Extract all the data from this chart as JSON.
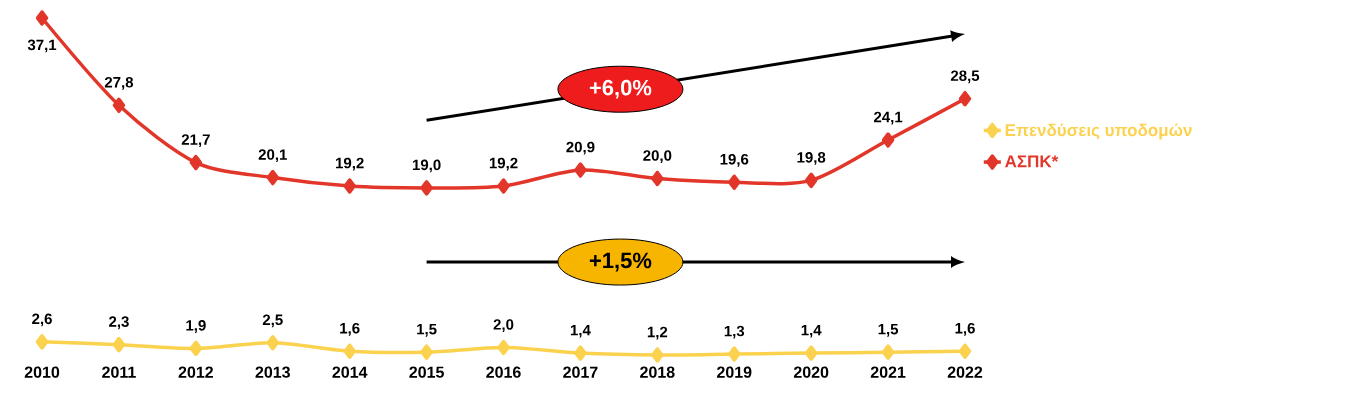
{
  "chart_data": {
    "type": "line",
    "categories": [
      "2010",
      "2011",
      "2012",
      "2013",
      "2014",
      "2015",
      "2016",
      "2017",
      "2018",
      "2019",
      "2020",
      "2021",
      "2022"
    ],
    "series": [
      {
        "name": "Επενδύσεις υποδομών",
        "color": "#fbd24e",
        "values": [
          2.6,
          2.3,
          1.9,
          2.5,
          1.6,
          1.5,
          2.0,
          1.4,
          1.2,
          1.3,
          1.4,
          1.5,
          1.6
        ],
        "value_labels": [
          "2,6",
          "2,3",
          "1,9",
          "2,5",
          "1,6",
          "1,5",
          "2,0",
          "1,4",
          "1,2",
          "1,3",
          "1,4",
          "1,5",
          "1,6"
        ]
      },
      {
        "name": "ΑΣΠΚ*",
        "color": "#e2362a",
        "values": [
          37.1,
          27.8,
          21.7,
          20.1,
          19.2,
          19.0,
          19.2,
          20.9,
          20.0,
          19.6,
          19.8,
          24.1,
          28.5
        ],
        "value_labels": [
          "37,1",
          "27,8",
          "21,7",
          "20,1",
          "19,2",
          "19,0",
          "19,2",
          "20,9",
          "20,0",
          "19,6",
          "19,8",
          "24,1",
          "28,5"
        ]
      }
    ],
    "tick_labels": "x",
    "marker": "diamond",
    "legend": "right",
    "grid": false,
    "annotations": [
      "+6,0%",
      "+1,5%"
    ]
  }
}
